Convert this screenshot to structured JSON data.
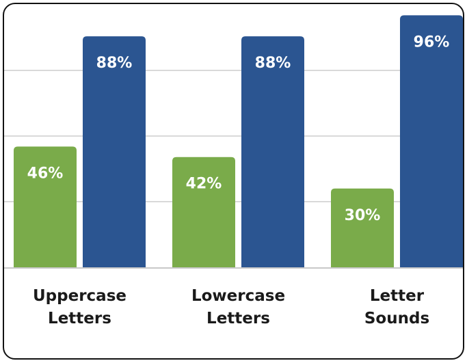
{
  "chart_data": {
    "type": "bar",
    "categories": [
      [
        "Uppercase",
        "Letters"
      ],
      [
        "Lowercase",
        "Letters"
      ],
      [
        "Letter",
        "Sounds"
      ]
    ],
    "series": [
      {
        "values": [
          46,
          42,
          30
        ],
        "labels": [
          "46%",
          "42%",
          "30%"
        ],
        "color": "#7aab4a"
      },
      {
        "values": [
          88,
          88,
          96
        ],
        "labels": [
          "88%",
          "88%",
          "96%"
        ],
        "color": "#2b5591"
      }
    ],
    "title": "",
    "xlabel": "",
    "ylabel": "",
    "ylim": [
      0,
      100
    ],
    "grid": true
  }
}
